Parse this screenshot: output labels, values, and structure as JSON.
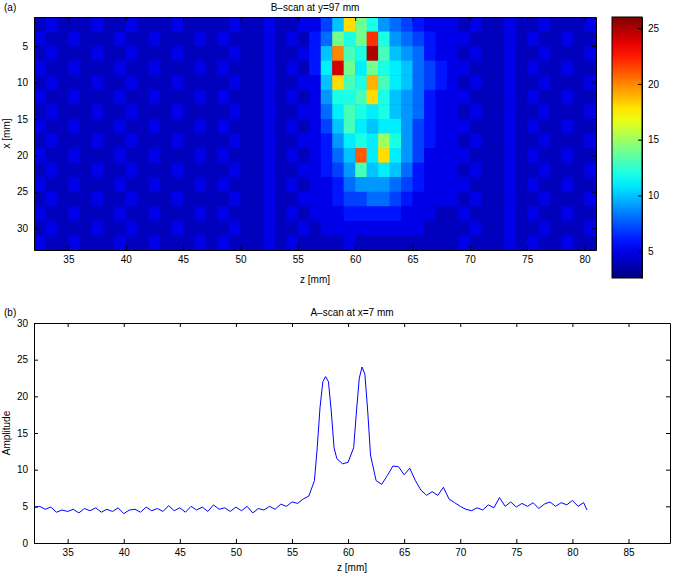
{
  "chart_data": [
    {
      "type": "heatmap",
      "panel_label": "(a)",
      "title": "B–scan at y=97 mm",
      "xlabel": "z [mm]",
      "ylabel": "x [mm]",
      "xlim": [
        32,
        81
      ],
      "xticks": [
        35,
        40,
        45,
        50,
        55,
        60,
        65,
        70,
        75,
        80
      ],
      "ylim": [
        33,
        1
      ],
      "yticks": [
        5,
        10,
        15,
        20,
        25,
        30
      ],
      "x_bins": [
        32,
        33,
        34,
        35,
        36,
        37,
        38,
        39,
        40,
        41,
        42,
        43,
        44,
        45,
        46,
        47,
        48,
        49,
        50,
        51,
        52,
        53,
        54,
        55,
        56,
        57,
        58,
        59,
        60,
        61,
        62,
        63,
        64,
        65,
        66,
        67,
        68,
        69,
        70,
        71,
        72,
        73,
        74,
        75,
        76,
        77,
        78,
        79,
        80,
        81
      ],
      "y_bins": [
        1,
        3,
        5,
        7,
        9,
        11,
        13,
        15,
        17,
        19,
        21,
        23,
        25,
        27,
        29,
        31,
        33
      ],
      "cells": [
        [
          4,
          5,
          4,
          4,
          4,
          5,
          4,
          4,
          5,
          4,
          4,
          4,
          5,
          4,
          4,
          4,
          4,
          5,
          4,
          4,
          5,
          4,
          4,
          5,
          5,
          7,
          10,
          18,
          14,
          12,
          9,
          8,
          7,
          6,
          5,
          5,
          5,
          4,
          5,
          4,
          4,
          5,
          4,
          4,
          5,
          4,
          4,
          4,
          5
        ],
        [
          5,
          4,
          4,
          5,
          4,
          4,
          4,
          5,
          4,
          4,
          5,
          4,
          4,
          4,
          5,
          4,
          5,
          4,
          4,
          4,
          5,
          4,
          5,
          4,
          6,
          8,
          14,
          12,
          14,
          22,
          12,
          9,
          8,
          7,
          6,
          5,
          5,
          5,
          4,
          4,
          4,
          5,
          4,
          5,
          4,
          4,
          5,
          4,
          4
        ],
        [
          4,
          5,
          4,
          4,
          4,
          5,
          4,
          4,
          5,
          4,
          4,
          4,
          5,
          4,
          4,
          4,
          4,
          5,
          4,
          4,
          5,
          4,
          4,
          5,
          6,
          10,
          20,
          13,
          12,
          25,
          13,
          10,
          9,
          8,
          6,
          5,
          5,
          4,
          5,
          4,
          4,
          5,
          4,
          4,
          5,
          4,
          4,
          4,
          5
        ],
        [
          5,
          4,
          4,
          5,
          4,
          4,
          4,
          5,
          4,
          4,
          5,
          4,
          4,
          4,
          5,
          4,
          5,
          4,
          4,
          4,
          5,
          4,
          5,
          4,
          6,
          11,
          24,
          14,
          11,
          14,
          12,
          11,
          10,
          8,
          7,
          6,
          5,
          5,
          4,
          4,
          4,
          5,
          4,
          5,
          4,
          4,
          5,
          4,
          4
        ],
        [
          4,
          5,
          4,
          4,
          4,
          5,
          4,
          4,
          5,
          4,
          4,
          4,
          5,
          4,
          4,
          4,
          4,
          5,
          4,
          4,
          5,
          4,
          4,
          5,
          5,
          10,
          18,
          13,
          12,
          19,
          13,
          11,
          10,
          8,
          7,
          6,
          5,
          4,
          5,
          4,
          4,
          5,
          4,
          4,
          5,
          4,
          4,
          4,
          5
        ],
        [
          5,
          4,
          4,
          5,
          4,
          4,
          4,
          5,
          4,
          4,
          5,
          4,
          4,
          4,
          5,
          4,
          5,
          4,
          4,
          4,
          5,
          4,
          5,
          4,
          5,
          9,
          12,
          12,
          13,
          18,
          12,
          10,
          9,
          8,
          6,
          5,
          5,
          5,
          4,
          4,
          4,
          5,
          4,
          5,
          4,
          4,
          5,
          4,
          4
        ],
        [
          4,
          5,
          4,
          4,
          4,
          5,
          4,
          4,
          5,
          4,
          4,
          4,
          5,
          4,
          4,
          4,
          4,
          5,
          4,
          4,
          5,
          4,
          4,
          5,
          5,
          8,
          11,
          13,
          12,
          11,
          12,
          10,
          9,
          8,
          6,
          5,
          5,
          4,
          5,
          4,
          4,
          5,
          4,
          4,
          5,
          4,
          4,
          4,
          5
        ],
        [
          5,
          4,
          4,
          5,
          4,
          4,
          4,
          5,
          4,
          4,
          5,
          4,
          4,
          4,
          5,
          4,
          5,
          4,
          4,
          4,
          5,
          4,
          5,
          4,
          5,
          7,
          10,
          13,
          11,
          10,
          11,
          11,
          9,
          7,
          6,
          5,
          5,
          5,
          4,
          4,
          4,
          5,
          4,
          5,
          4,
          4,
          5,
          4,
          4
        ],
        [
          4,
          5,
          4,
          4,
          4,
          5,
          4,
          4,
          5,
          4,
          4,
          4,
          5,
          4,
          4,
          4,
          4,
          5,
          4,
          4,
          5,
          4,
          4,
          5,
          5,
          6,
          9,
          11,
          12,
          11,
          15,
          12,
          9,
          7,
          6,
          5,
          5,
          4,
          5,
          4,
          4,
          5,
          4,
          4,
          5,
          4,
          4,
          4,
          5
        ],
        [
          5,
          4,
          4,
          5,
          4,
          4,
          4,
          5,
          4,
          4,
          5,
          4,
          4,
          4,
          5,
          4,
          5,
          4,
          4,
          4,
          5,
          4,
          5,
          4,
          5,
          6,
          8,
          10,
          21,
          11,
          18,
          11,
          9,
          7,
          5,
          5,
          5,
          5,
          4,
          4,
          4,
          5,
          4,
          5,
          4,
          4,
          5,
          4,
          4
        ],
        [
          4,
          5,
          4,
          4,
          4,
          5,
          4,
          4,
          5,
          4,
          4,
          4,
          5,
          4,
          4,
          4,
          4,
          5,
          4,
          4,
          5,
          4,
          4,
          5,
          5,
          6,
          7,
          9,
          13,
          10,
          11,
          10,
          8,
          6,
          5,
          5,
          5,
          4,
          5,
          4,
          4,
          5,
          4,
          4,
          5,
          4,
          4,
          4,
          5
        ],
        [
          5,
          4,
          4,
          5,
          4,
          4,
          4,
          5,
          4,
          4,
          5,
          4,
          4,
          4,
          5,
          4,
          5,
          4,
          4,
          4,
          5,
          4,
          5,
          4,
          5,
          5,
          6,
          8,
          9,
          9,
          9,
          8,
          7,
          6,
          5,
          5,
          5,
          5,
          4,
          4,
          4,
          5,
          4,
          5,
          4,
          4,
          5,
          4,
          4
        ],
        [
          4,
          5,
          4,
          4,
          4,
          5,
          4,
          4,
          5,
          4,
          4,
          4,
          5,
          4,
          4,
          4,
          4,
          5,
          4,
          4,
          5,
          4,
          4,
          5,
          5,
          5,
          6,
          7,
          7,
          8,
          8,
          7,
          6,
          5,
          5,
          5,
          5,
          4,
          5,
          4,
          4,
          5,
          4,
          4,
          5,
          4,
          4,
          4,
          5
        ],
        [
          5,
          4,
          4,
          5,
          4,
          4,
          4,
          5,
          4,
          4,
          5,
          4,
          4,
          4,
          5,
          4,
          5,
          4,
          4,
          4,
          5,
          4,
          5,
          4,
          5,
          5,
          5,
          6,
          6,
          6,
          6,
          6,
          5,
          5,
          5,
          4,
          4,
          5,
          4,
          4,
          4,
          5,
          4,
          5,
          4,
          4,
          5,
          4,
          4
        ],
        [
          4,
          5,
          4,
          4,
          4,
          5,
          4,
          4,
          5,
          4,
          4,
          4,
          5,
          4,
          4,
          4,
          4,
          5,
          4,
          4,
          5,
          4,
          4,
          5,
          4,
          5,
          5,
          5,
          5,
          5,
          5,
          5,
          5,
          5,
          4,
          4,
          4,
          4,
          5,
          4,
          4,
          5,
          4,
          4,
          5,
          4,
          4,
          4,
          5
        ],
        [
          5,
          4,
          4,
          5,
          4,
          4,
          4,
          5,
          4,
          4,
          5,
          4,
          4,
          4,
          5,
          4,
          5,
          4,
          4,
          4,
          5,
          4,
          5,
          4,
          4,
          4,
          4,
          5,
          4,
          4,
          4,
          4,
          4,
          4,
          4,
          4,
          4,
          5,
          4,
          4,
          4,
          5,
          4,
          5,
          4,
          4,
          5,
          4,
          4
        ]
      ],
      "colorbar": {
        "range": [
          2.6,
          26
        ],
        "ticks": [
          5,
          10,
          15,
          20,
          25
        ]
      }
    },
    {
      "type": "line",
      "panel_label": "(b)",
      "title": "A–scan at x=7 mm",
      "xlabel": "z [mm]",
      "ylabel": "Amplitude",
      "xlim": [
        32,
        88.7
      ],
      "xticks": [
        35,
        40,
        45,
        50,
        55,
        60,
        65,
        70,
        75,
        80,
        85
      ],
      "ylim": [
        0,
        30
      ],
      "yticks": [
        0,
        5,
        10,
        15,
        20,
        25,
        30
      ],
      "color": "#0000ff",
      "x": [
        32,
        32.5,
        33,
        33.5,
        34,
        34.5,
        35,
        35.5,
        36,
        36.5,
        37,
        37.5,
        38,
        38.5,
        39,
        39.5,
        40,
        40.5,
        41,
        41.5,
        42,
        42.5,
        43,
        43.5,
        44,
        44.5,
        45,
        45.5,
        46,
        46.5,
        47,
        47.5,
        48,
        48.5,
        49,
        49.5,
        50,
        50.5,
        51,
        51.5,
        52,
        52.5,
        53,
        53.5,
        54,
        54.5,
        55,
        55.5,
        56,
        56.5,
        57,
        57.25,
        57.5,
        57.75,
        58,
        58.25,
        58.5,
        58.75,
        59,
        59.5,
        60,
        60.5,
        60.75,
        61,
        61.25,
        61.5,
        61.75,
        62,
        62.5,
        63,
        63.5,
        64,
        64.5,
        65,
        65.5,
        66,
        66.5,
        67,
        67.5,
        68,
        68.5,
        69,
        69.5,
        70,
        70.5,
        71,
        71.5,
        72,
        72.5,
        73,
        73.5,
        74,
        74.5,
        75,
        75.5,
        76,
        76.5,
        77,
        77.5,
        78,
        78.5,
        79,
        79.5,
        80,
        80.5,
        81,
        81.3
      ],
      "values": [
        4.8,
        5.0,
        4.6,
        4.9,
        4.2,
        4.5,
        4.3,
        4.6,
        4.1,
        4.7,
        4.4,
        4.8,
        4.2,
        4.6,
        4.3,
        4.8,
        4.0,
        4.5,
        4.6,
        4.2,
        4.9,
        4.4,
        4.7,
        4.3,
        5.1,
        4.4,
        4.8,
        4.2,
        5.0,
        4.5,
        4.9,
        4.3,
        5.2,
        4.6,
        4.8,
        4.3,
        4.9,
        4.4,
        5.0,
        4.1,
        4.7,
        4.5,
        5.0,
        4.6,
        5.3,
        5.0,
        5.6,
        5.4,
        6.0,
        6.4,
        8.5,
        13,
        18.5,
        22,
        22.7,
        22,
        18,
        13,
        11.5,
        10.8,
        11,
        13,
        18,
        22.5,
        24,
        23,
        18,
        12,
        8.5,
        8.0,
        9.2,
        10.5,
        10.4,
        9.3,
        10.2,
        8.5,
        7.2,
        6.5,
        7.0,
        6.5,
        7.6,
        6.0,
        5.5,
        5.0,
        4.6,
        4.4,
        4.8,
        4.5,
        5.2,
        4.8,
        6.2,
        5.0,
        5.6,
        4.9,
        5.4,
        5.0,
        5.5,
        4.7,
        5.3,
        5.6,
        5.0,
        5.5,
        5.2,
        5.8,
        5.0,
        5.5,
        4.5
      ]
    }
  ]
}
